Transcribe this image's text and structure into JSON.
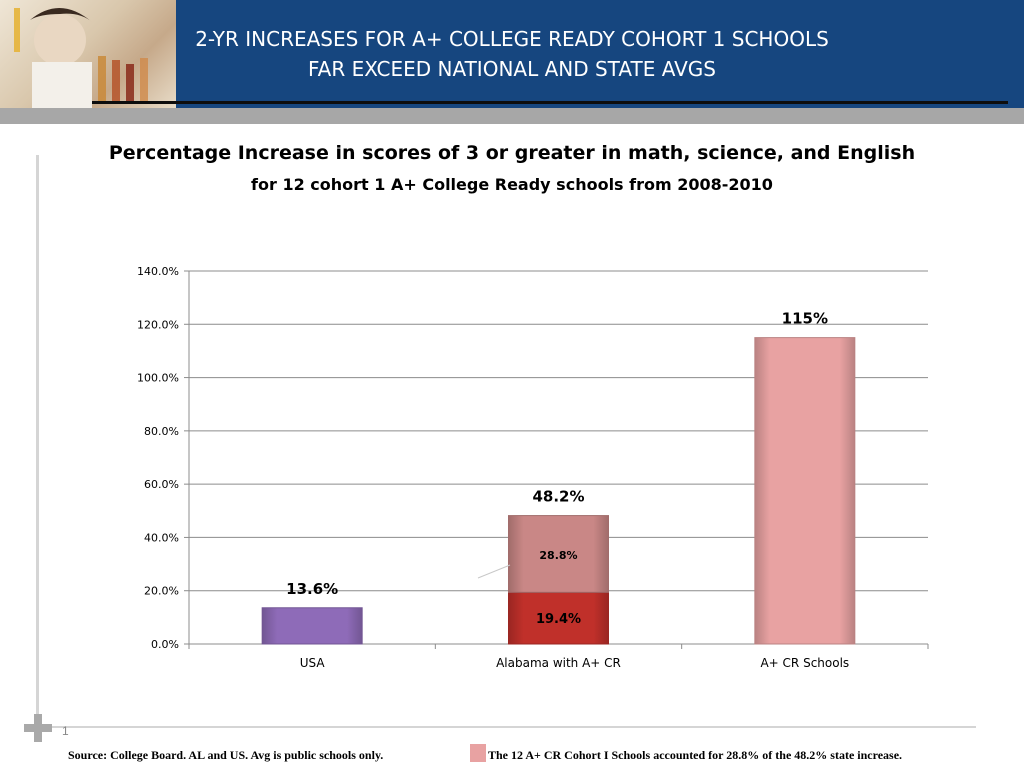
{
  "header": {
    "title_line1": "2-YR INCREASES FOR A+ COLLEGE READY COHORT 1 SCHOOLS",
    "title_line2": "FAR EXCEED NATIONAL AND STATE AVGS"
  },
  "chart_data": {
    "type": "bar",
    "title": "Percentage Increase in scores of 3 or greater in math, science, and English",
    "subtitle": "for 12 cohort 1 A+ College Ready schools from 2008-2010",
    "xlabel": "",
    "ylabel": "",
    "ylim": [
      0,
      140
    ],
    "yticks": [
      0,
      20,
      40,
      60,
      80,
      100,
      120,
      140
    ],
    "ytick_labels": [
      "0.0%",
      "20.0%",
      "40.0%",
      "60.0%",
      "80.0%",
      "100.0%",
      "120.0%",
      "140.0%"
    ],
    "grid": true,
    "categories": [
      "USA",
      "Alabama with A+ CR",
      "A+ CR Schools"
    ],
    "bars": [
      {
        "category": "USA",
        "segments": [
          {
            "value": 13.6,
            "color": "#8e6bb8"
          }
        ],
        "total_label": "13.6%"
      },
      {
        "category": "Alabama with A+ CR",
        "segments": [
          {
            "value": 19.4,
            "color": "#c0302a",
            "label": "19.4%"
          },
          {
            "value": 28.8,
            "color": "#c98786",
            "label": "28.8%"
          }
        ],
        "total_label": "48.2%"
      },
      {
        "category": "A+ CR Schools",
        "segments": [
          {
            "value": 115,
            "color": "#e8a2a2"
          }
        ],
        "total_label": "115%"
      }
    ]
  },
  "footer": {
    "page_number": "1",
    "source": "Source: College Board. AL and US. Avg is public schools only.",
    "note": "The 12 A+ CR Cohort I Schools accounted for 28.8% of the 48.2%  state increase.",
    "note_swatch_color": "#e8a2a2"
  }
}
